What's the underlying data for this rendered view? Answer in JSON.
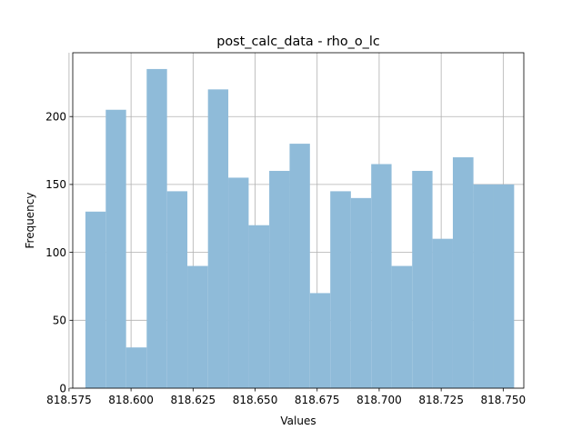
{
  "chart_data": {
    "type": "bar",
    "title": "post_calc_data - rho_o_lc",
    "xlabel": "Values",
    "ylabel": "Frequency",
    "xlim": [
      818.5765,
      818.7583
    ],
    "ylim": [
      0,
      247
    ],
    "xticks": [
      818.575,
      818.6,
      818.625,
      818.65,
      818.675,
      818.7,
      818.725,
      818.75
    ],
    "xtick_labels": [
      "818.575",
      "818.600",
      "818.625",
      "818.650",
      "818.675",
      "818.700",
      "818.725",
      "818.750"
    ],
    "yticks": [
      0,
      50,
      100,
      150,
      200
    ],
    "ytick_labels": [
      "0",
      "50",
      "100",
      "150",
      "200"
    ],
    "grid": true,
    "bar_color": "#8fbbd9",
    "bins": {
      "edges": [
        818.5816,
        818.5898,
        818.598,
        818.6063,
        818.6145,
        818.6227,
        818.631,
        818.6392,
        818.6474,
        818.6557,
        818.6639,
        818.6721,
        818.6803,
        818.6886,
        818.6968,
        818.705,
        818.7133,
        818.7215,
        818.7297,
        818.738,
        818.7462,
        818.7544
      ],
      "values": [
        130,
        205,
        30,
        235,
        145,
        90,
        220,
        155,
        120,
        160,
        180,
        70,
        145,
        140,
        165,
        90,
        160,
        110,
        170,
        150,
        150
      ]
    }
  }
}
